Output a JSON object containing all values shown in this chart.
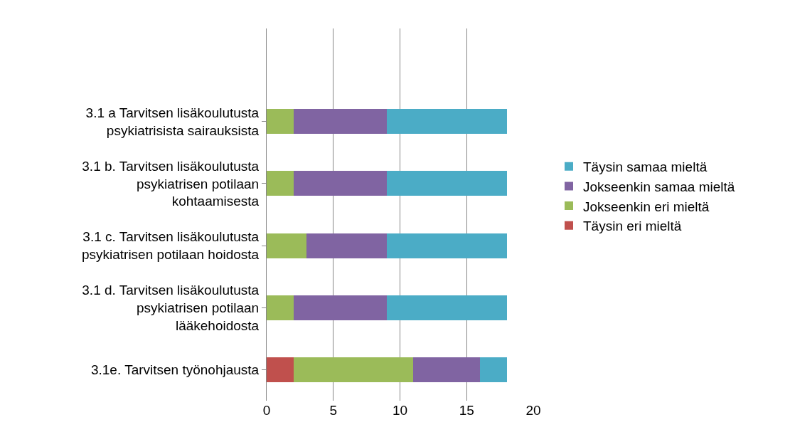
{
  "chart_data": {
    "type": "bar",
    "orientation": "horizontal",
    "stacked": true,
    "categories": [
      null,
      "3.1 a Tarvitsen lisäkoulutusta psykiatrisista sairauksista",
      "3.1 b. Tarvitsen lisäkoulutusta psykiatrisen potilaan kohtaamisesta",
      "3.1 c. Tarvitsen lisäkoulutusta psykiatrisen potilaan hoidosta",
      "3.1 d. Tarvitsen lisäkoulutusta psykiatrisen potilaan lääkehoidosta",
      "3.1e. Tarvitsen työnohjausta"
    ],
    "series": [
      {
        "name": "Täysin eri mieltä",
        "color": "#c0504d",
        "values": [
          null,
          0,
          0,
          0,
          0,
          2
        ]
      },
      {
        "name": "Jokseenkin eri mieltä",
        "color": "#9bbb59",
        "values": [
          null,
          2,
          2,
          3,
          2,
          9
        ]
      },
      {
        "name": "Jokseenkin samaa mieltä",
        "color": "#8064a2",
        "values": [
          null,
          7,
          7,
          6,
          7,
          5
        ]
      },
      {
        "name": "Täysin samaa mieltä",
        "color": "#4bacc6",
        "values": [
          null,
          9,
          9,
          9,
          9,
          2
        ]
      }
    ],
    "xlim": [
      0,
      20
    ],
    "xticks": [
      0,
      5,
      10,
      15,
      20
    ],
    "grid": "x",
    "legend": "right"
  }
}
